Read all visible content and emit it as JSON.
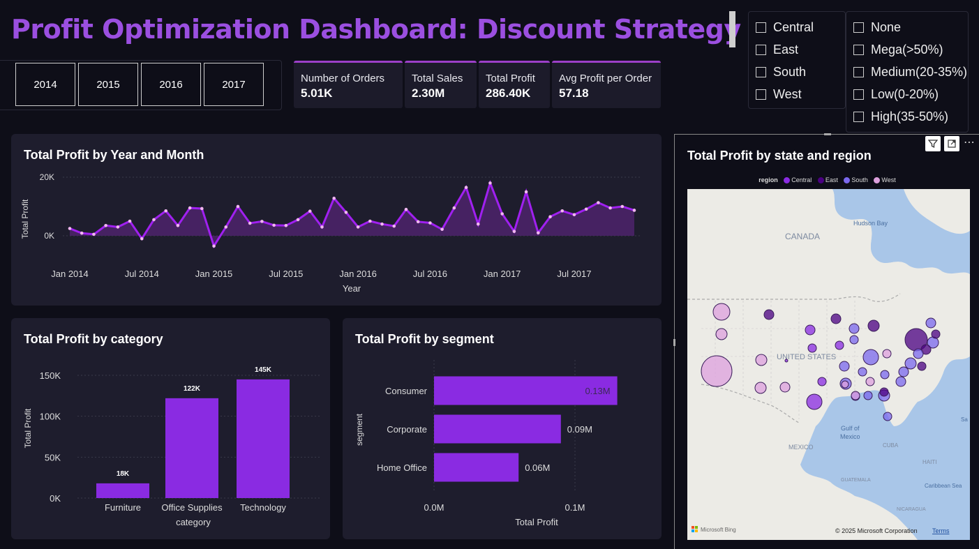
{
  "title": "Profit Optimization Dashboard: Discount Strategy Insights",
  "colors": {
    "accent": "#9b4fe0",
    "bar": "#8a2be2",
    "line": "#a020f0",
    "area": "#4a2368",
    "marker": "#f0b6f0",
    "panel": "#1e1d2d"
  },
  "year_slicer": [
    "2014",
    "2015",
    "2016",
    "2017"
  ],
  "kpis": [
    {
      "label": "Number of Orders",
      "value": "5.01K"
    },
    {
      "label": "Total Sales",
      "value": "2.30M"
    },
    {
      "label": "Total Profit",
      "value": "286.40K"
    },
    {
      "label": "Avg Profit per Order",
      "value": "57.18"
    }
  ],
  "region_filter": [
    "Central",
    "East",
    "South",
    "West"
  ],
  "discount_filter": [
    "None",
    "Mega(>50%)",
    "Medium(20-35%)",
    "Low(0-20%)",
    "High(35-50%)"
  ],
  "chart_data": [
    {
      "type": "area",
      "title": "Total Profit by Year and Month",
      "xlabel": "Year",
      "ylabel": "Total Profit",
      "x_ticks": [
        "Jan 2014",
        "Jul 2014",
        "Jan 2015",
        "Jul 2015",
        "Jan 2016",
        "Jul 2016",
        "Jan 2017",
        "Jul 2017"
      ],
      "y_ticks": [
        "20K",
        "0K"
      ],
      "ylim": [
        -5000,
        20000
      ],
      "values": [
        2500,
        900,
        500,
        3500,
        3000,
        5000,
        -1000,
        5500,
        8500,
        3500,
        9500,
        9300,
        -3500,
        3000,
        10000,
        4300,
        4900,
        3600,
        3500,
        5500,
        8400,
        3000,
        12800,
        8000,
        3000,
        5000,
        4000,
        3300,
        9000,
        4800,
        4400,
        2200,
        9500,
        16500,
        4000,
        18000,
        7500,
        1500,
        15000,
        1000,
        6500,
        8500,
        7200,
        9100,
        11300,
        9500,
        10000,
        8700
      ]
    },
    {
      "type": "bar",
      "title": "Total Profit by category",
      "xlabel": "category",
      "ylabel": "Total Profit",
      "categories": [
        "Furniture",
        "Office Supplies",
        "Technology"
      ],
      "values": [
        18000,
        122000,
        145000
      ],
      "data_labels": [
        "18K",
        "122K",
        "145K"
      ],
      "y_ticks": [
        "150K",
        "100K",
        "50K",
        "0K"
      ],
      "ylim": [
        0,
        150000
      ]
    },
    {
      "type": "bar",
      "orientation": "horizontal",
      "title": "Total Profit by segment",
      "xlabel": "Total Profit",
      "ylabel": "segment",
      "categories": [
        "Consumer",
        "Corporate",
        "Home Office"
      ],
      "values": [
        0.13,
        0.09,
        0.06
      ],
      "data_labels": [
        "0.13M",
        "0.09M",
        "0.06M"
      ],
      "x_ticks": [
        "0.0M",
        "0.1M"
      ],
      "xlim": [
        0,
        0.14
      ]
    }
  ],
  "map": {
    "title": "Total Profit by state and region",
    "legend_title": "region",
    "legend": [
      {
        "name": "Central",
        "color": "#8a2be2"
      },
      {
        "name": "East",
        "color": "#4b0082"
      },
      {
        "name": "South",
        "color": "#7b68ee"
      },
      {
        "name": "West",
        "color": "#dda0dd"
      }
    ],
    "labels": {
      "canada": "CANADA",
      "us": "UNITED STATES",
      "mexico": "MEXICO",
      "hudson": "Hudson Bay",
      "gulf1": "Gulf of",
      "gulf2": "Mexico",
      "cuba": "CUBA",
      "haiti": "HAITI",
      "caribbean": "Caribbean Sea",
      "guatemala": "GUATEMALA",
      "nicaragua": "NICARAGUA",
      "sa": "Sa"
    },
    "bing": "Microsoft Bing",
    "copyright": "© 2025 Microsoft Corporation",
    "terms": "Terms"
  }
}
